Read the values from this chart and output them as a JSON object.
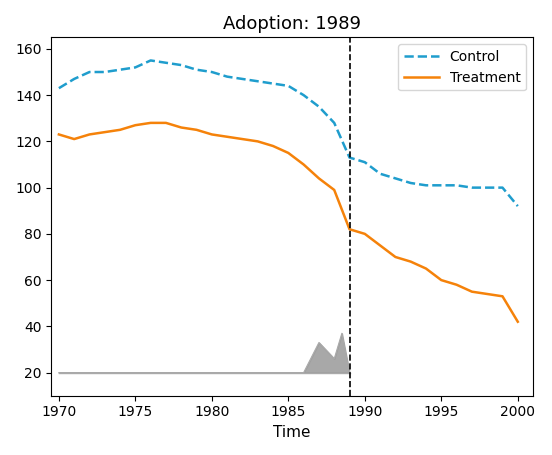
{
  "title": "Adoption: 1989",
  "xlabel": "Time",
  "ylabel": "",
  "treatment_year": 1989,
  "ylim": [
    10,
    165
  ],
  "xlim": [
    1969.5,
    2001
  ],
  "yticks": [
    20,
    40,
    60,
    80,
    100,
    120,
    140,
    160
  ],
  "xticks": [
    1970,
    1975,
    1980,
    1985,
    1990,
    1995,
    2000
  ],
  "control_x": [
    1970,
    1971,
    1972,
    1973,
    1974,
    1975,
    1976,
    1977,
    1978,
    1979,
    1980,
    1981,
    1982,
    1983,
    1984,
    1985,
    1986,
    1987,
    1988,
    1989,
    1990,
    1991,
    1992,
    1993,
    1994,
    1995,
    1996,
    1997,
    1998,
    1999,
    2000
  ],
  "control_y": [
    143,
    147,
    150,
    150,
    151,
    152,
    155,
    154,
    153,
    151,
    150,
    148,
    147,
    146,
    145,
    144,
    140,
    135,
    128,
    113,
    111,
    106,
    104,
    102,
    101,
    101,
    101,
    100,
    100,
    100,
    92
  ],
  "treatment_x": [
    1970,
    1971,
    1972,
    1973,
    1974,
    1975,
    1976,
    1977,
    1978,
    1979,
    1980,
    1981,
    1982,
    1983,
    1984,
    1985,
    1986,
    1987,
    1988,
    1989,
    1990,
    1991,
    1992,
    1993,
    1994,
    1995,
    1996,
    1997,
    1998,
    1999,
    2000
  ],
  "treatment_y": [
    123,
    121,
    123,
    124,
    125,
    127,
    128,
    128,
    126,
    125,
    123,
    122,
    121,
    120,
    118,
    115,
    110,
    104,
    99,
    82,
    80,
    75,
    70,
    68,
    65,
    60,
    58,
    55,
    54,
    53,
    42
  ],
  "weight_x": [
    1970,
    1971,
    1972,
    1973,
    1974,
    1975,
    1976,
    1977,
    1978,
    1979,
    1980,
    1981,
    1982,
    1983,
    1984,
    1985,
    1986,
    1987,
    1988,
    1988.5,
    1989
  ],
  "weight_y": [
    20,
    20,
    20,
    20,
    20,
    20,
    20,
    20,
    20,
    20,
    20,
    20,
    20,
    20,
    20,
    20,
    20,
    33,
    26,
    37,
    20
  ],
  "weight_base": 20,
  "control_color": "#1f9dcd",
  "treatment_color": "#f5820a",
  "weight_fill_color": "#999999",
  "weight_line_color": "#aaaaaa",
  "vline_x": 1989,
  "figsize": [
    5.52,
    4.55
  ],
  "dpi": 100
}
